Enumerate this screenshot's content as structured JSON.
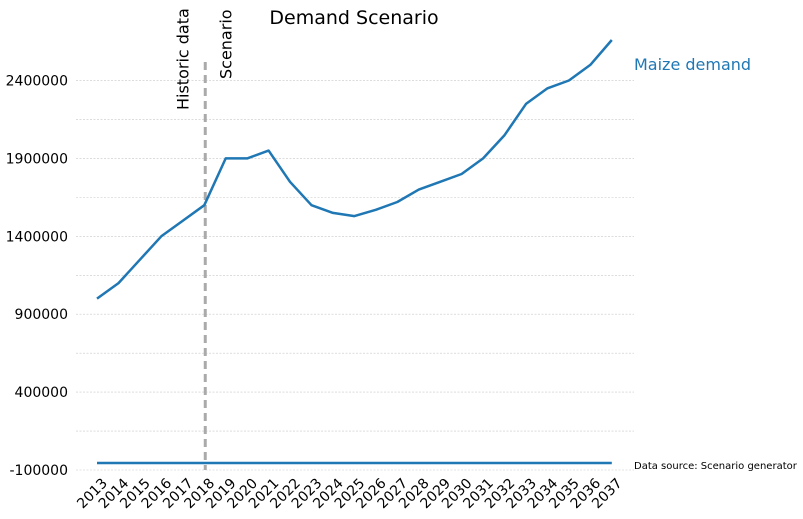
{
  "chart_data": {
    "type": "line",
    "title": "Demand Scenario",
    "xlabel": "",
    "ylabel": "",
    "x": [
      "2013",
      "2014",
      "2015",
      "2016",
      "2017",
      "2018",
      "2019",
      "2020",
      "2021",
      "2022",
      "2023",
      "2024",
      "2025",
      "2026",
      "2027",
      "2028",
      "2029",
      "2030",
      "2031",
      "2032",
      "2033",
      "2034",
      "2035",
      "2036",
      "2037"
    ],
    "series": [
      {
        "name": "Maize demand",
        "color": "#1f77b4",
        "values": [
          1000000,
          1100000,
          1250000,
          1400000,
          1500000,
          1600000,
          1900000,
          1900000,
          1950000,
          1750000,
          1600000,
          1550000,
          1530000,
          1570000,
          1620000,
          1700000,
          1750000,
          1800000,
          1900000,
          2050000,
          2250000,
          2350000,
          2400000,
          2500000,
          2660000
        ]
      }
    ],
    "baseline": {
      "value": -55000,
      "color": "#1f77b4"
    },
    "ylim": [
      -100000,
      2750000
    ],
    "yticks": [
      -100000,
      400000,
      900000,
      1400000,
      1900000,
      2400000
    ],
    "divider": {
      "x": "2018",
      "color": "#aaaaaa",
      "left_label": "Historic data",
      "right_label": "Scenario"
    },
    "grid": true,
    "source_note": "Data source: Scenario generator"
  }
}
